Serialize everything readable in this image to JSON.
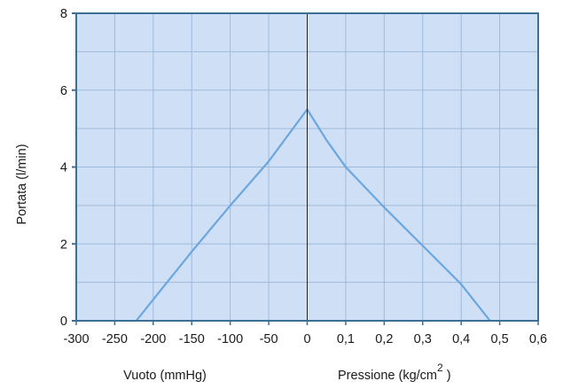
{
  "chart_data": {
    "type": "line",
    "title": "",
    "ylabel": "Portata (l/min)",
    "xlabel_left": "Vuoto (mmHg)",
    "xlabel_right_prefix": "Pressione (kg/cm",
    "xlabel_right_superscript": "2",
    "xlabel_right_suffix": " )",
    "ylim": [
      0,
      8
    ],
    "y_ticks": [
      "0",
      "2",
      "4",
      "6",
      "8"
    ],
    "x_tick_labels": [
      "-300",
      "-250",
      "-200",
      "-150",
      "-100",
      "-50",
      "0",
      "0,1",
      "0,2",
      "0,3",
      "0,4",
      "0,5",
      "0,6"
    ],
    "grid": true,
    "colors": {
      "plot_background": "#cfe0f6",
      "grid": "#9fb9d8",
      "frame": "#3a6f96",
      "series_line": "#6aa6df",
      "zero_line": "#222222"
    },
    "series": [
      {
        "segment": "vacuum",
        "x_unit": "mmHg",
        "x": [
          -222,
          -200,
          -150,
          -100,
          -50,
          0
        ],
        "y": [
          0,
          0.55,
          1.8,
          3.0,
          4.15,
          5.5
        ]
      },
      {
        "segment": "pressure",
        "x_unit": "kg/cm2",
        "x": [
          0,
          0.05,
          0.1,
          0.2,
          0.3,
          0.4,
          0.475
        ],
        "y": [
          5.5,
          4.7,
          4.0,
          2.95,
          1.95,
          0.95,
          0
        ]
      }
    ]
  }
}
